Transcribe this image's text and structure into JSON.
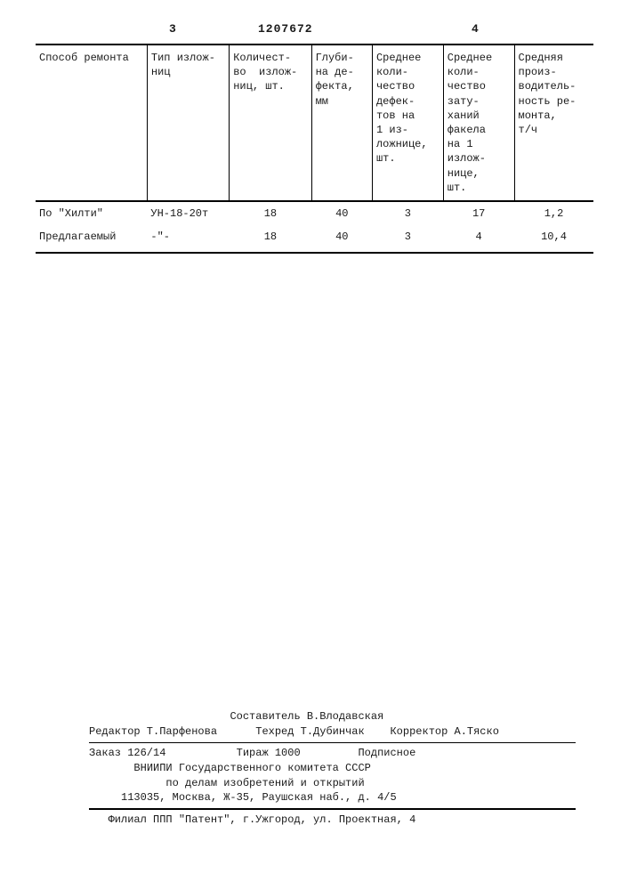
{
  "page_header": {
    "left_num": "3",
    "doc_number": "1207672",
    "right_num": "4"
  },
  "table": {
    "columns": [
      "Способ ремонта",
      "Тип излож-\nниц",
      "Количест-\nво  излож-\nниц, шт.",
      "Глуби-\nна де-\nфекта,\nмм",
      "Среднее\nколи-\nчество\nдефек-\nтов на\n1 из-\nложнице,\nшт.",
      "Среднее\nколи-\nчество\nзату-\nханий\nфакела\nна 1\nизлож-\nнице,\nшт.",
      "Средняя\nпроиз-\nводитель-\nность ре-\nмонта,\nт/ч"
    ],
    "rows": [
      [
        "По \"Хилти\"",
        "УН-18-20т",
        "18",
        "40",
        "3",
        "17",
        "1,2"
      ],
      [
        "Предлагаемый",
        "-\"-",
        "18",
        "40",
        "3",
        "4",
        "10,4"
      ]
    ],
    "col_widths": [
      "110px",
      "80px",
      "80px",
      "60px",
      "70px",
      "70px",
      "78px"
    ]
  },
  "footer": {
    "compiler": "Составитель В.Влодавская",
    "editor": "Редактор Т.Парфенова",
    "techred": "Техред Т.Дубинчак",
    "corrector": "Корректор А.Тяско",
    "order": "Заказ 126/14",
    "tirazh": "Тираж 1000",
    "podpisnoe": "Подписное",
    "org1": "ВНИИПИ Государственного комитета СССР",
    "org2": "по делам изобретений и открытий",
    "addr1": "113035, Москва, Ж-35, Раушская наб., д. 4/5",
    "filial": "Филиал ППП \"Патент\", г.Ужгород, ул. Проектная, 4"
  },
  "colors": {
    "text": "#1a1a1a",
    "bg": "#ffffff",
    "rule": "#000000"
  }
}
